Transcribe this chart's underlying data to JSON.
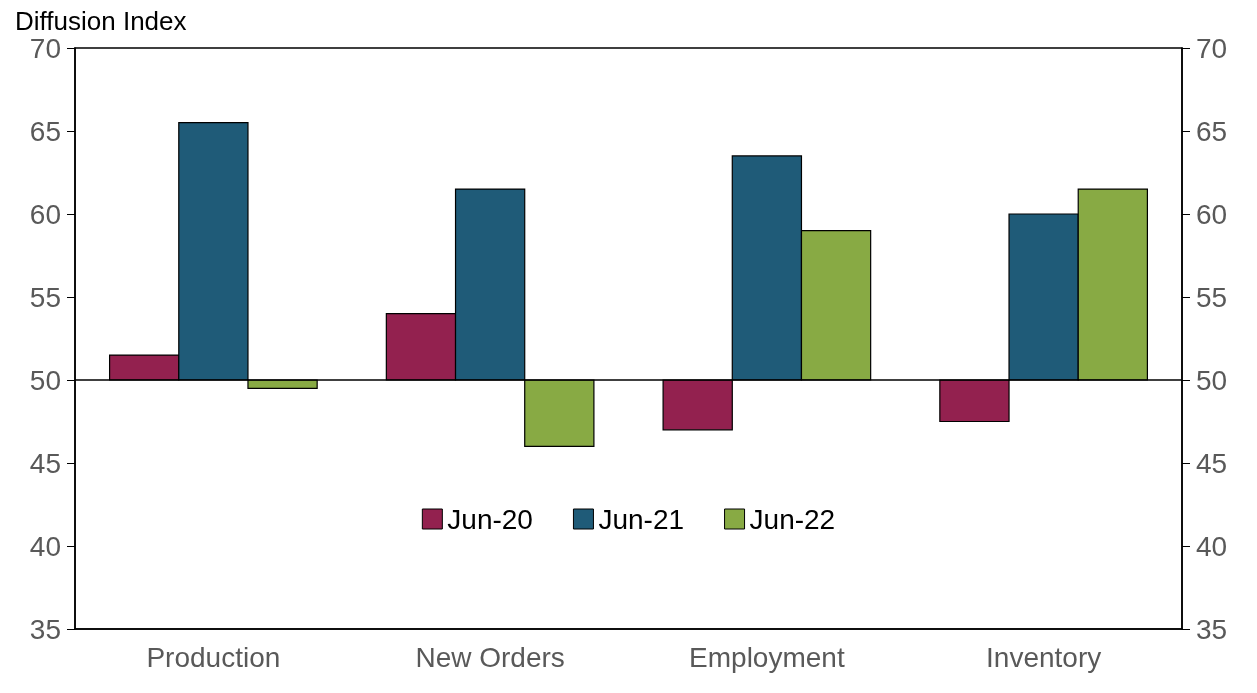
{
  "chart_data": {
    "type": "bar",
    "ylabel": "Diffusion Index",
    "categories": [
      "Production",
      "New Orders",
      "Employment",
      "Inventory"
    ],
    "series": [
      {
        "name": "Jun-20",
        "color": "#93214f",
        "base": [
          50,
          50,
          50,
          50
        ],
        "values": [
          1.5,
          4,
          -3,
          -2.5
        ]
      },
      {
        "name": "Jun-21",
        "color": "#1f5b78",
        "base": [
          50,
          50,
          50,
          50
        ],
        "values": [
          15.5,
          11.5,
          13.5,
          10
        ]
      },
      {
        "name": "Jun-22",
        "color": "#88aa44",
        "base": [
          50,
          50,
          50,
          50
        ],
        "values": [
          -0.5,
          -4,
          9,
          11.5
        ]
      }
    ],
    "ylim": [
      35,
      70
    ],
    "yticks": [
      35,
      40,
      45,
      50,
      55,
      60,
      65,
      70
    ],
    "y2lim": [
      35,
      70
    ],
    "y2ticks": [
      35,
      40,
      45,
      50,
      55,
      60,
      65,
      70
    ],
    "ref_lines": [
      {
        "axis": "y",
        "value": 50,
        "color": "#000000"
      }
    ],
    "grid": false,
    "legend": "bottom"
  }
}
